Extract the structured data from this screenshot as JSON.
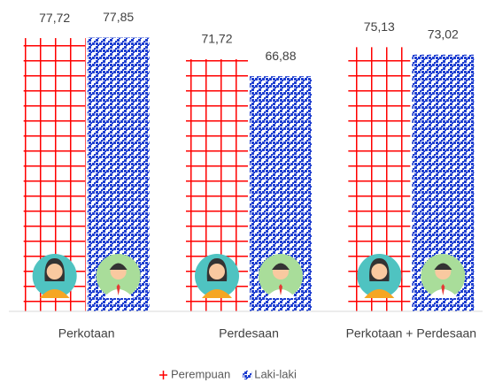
{
  "chart_data": {
    "type": "bar",
    "categories": [
      "Perkotaan",
      "Perdesaan",
      "Perkotaan + Perdesaan"
    ],
    "series": [
      {
        "name": "Perempuan",
        "color": "#ff0000",
        "values": [
          77.72,
          71.72,
          75.13
        ],
        "value_labels": [
          "77,72",
          "71,72",
          "75,13"
        ]
      },
      {
        "name": "Laki-laki",
        "color": "#1f3fd0",
        "values": [
          77.85,
          66.88,
          73.02
        ],
        "value_labels": [
          "77,85",
          "66,88",
          "73,02"
        ]
      }
    ],
    "ylim": [
      0,
      80
    ],
    "legend": "bottom"
  }
}
